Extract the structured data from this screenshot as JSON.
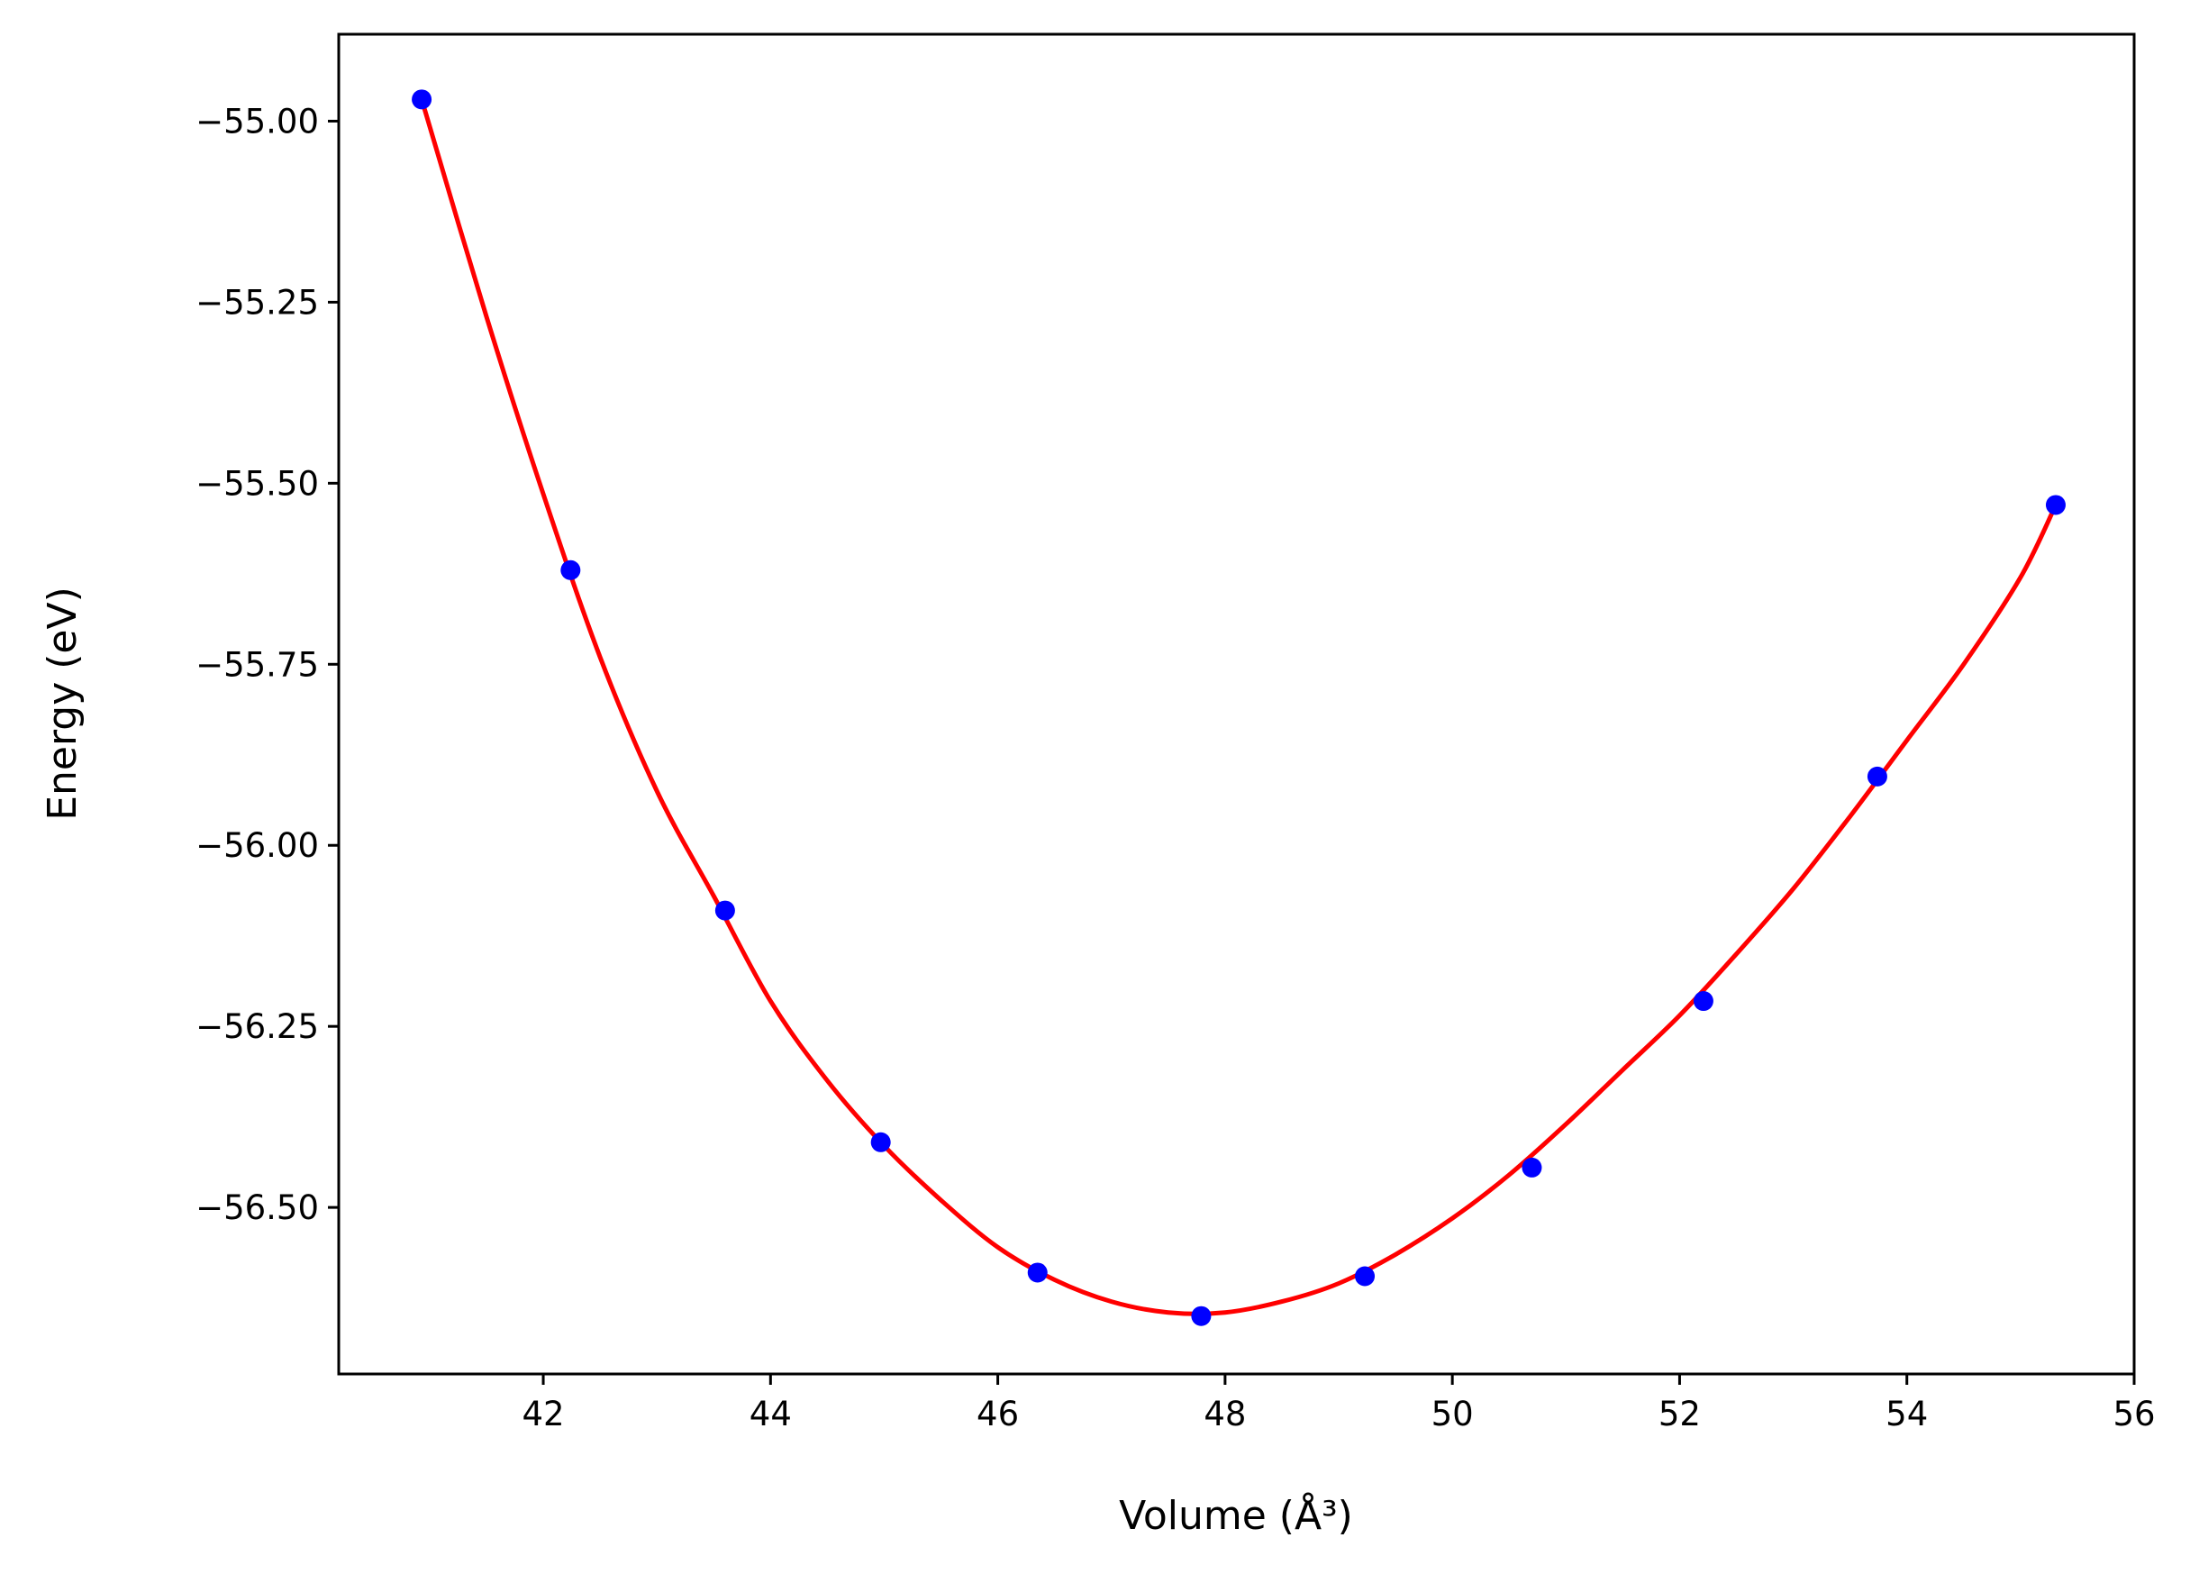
{
  "chart_data": {
    "type": "scatter",
    "title": "",
    "xlabel": "Volume (Å³)",
    "ylabel": "Energy (eV)",
    "xlim": [
      40.2,
      56.0
    ],
    "ylim": [
      -56.73,
      -54.88
    ],
    "x_ticks": [
      42,
      44,
      46,
      48,
      50,
      52,
      54,
      56
    ],
    "y_ticks": [
      -55.0,
      -55.25,
      -55.5,
      -55.75,
      -56.0,
      -56.25,
      -56.5
    ],
    "x_tick_labels": [
      "42",
      "44",
      "46",
      "48",
      "50",
      "52",
      "54",
      "56"
    ],
    "y_tick_labels": [
      "−55.00",
      "−55.25",
      "−55.50",
      "−55.75",
      "−56.00",
      "−56.25",
      "−56.50"
    ],
    "grid": false,
    "legend": "none",
    "series": [
      {
        "kind": "points",
        "color": "#0000ff",
        "x": [
          40.93,
          42.24,
          43.6,
          44.97,
          46.35,
          47.79,
          49.23,
          50.7,
          52.21,
          53.74,
          55.31
        ],
        "y": [
          -54.97,
          -55.62,
          -56.09,
          -56.41,
          -56.59,
          -56.65,
          -56.595,
          -56.445,
          -56.215,
          -55.905,
          -55.53
        ]
      },
      {
        "kind": "fit-curve",
        "color": "#ff0000",
        "x": [
          40.93,
          41.5,
          42.0,
          42.5,
          43.0,
          43.5,
          44.0,
          44.5,
          45.0,
          45.5,
          46.0,
          46.5,
          47.0,
          47.5,
          48.0,
          48.5,
          49.0,
          49.5,
          50.0,
          50.5,
          51.0,
          51.5,
          52.0,
          52.5,
          53.0,
          53.5,
          54.0,
          54.5,
          55.0,
          55.31
        ],
        "y": [
          -54.97,
          -55.27,
          -55.515,
          -55.74,
          -55.925,
          -56.07,
          -56.215,
          -56.325,
          -56.415,
          -56.49,
          -56.555,
          -56.6,
          -56.63,
          -56.645,
          -56.645,
          -56.63,
          -56.605,
          -56.565,
          -56.515,
          -56.455,
          -56.385,
          -56.31,
          -56.235,
          -56.15,
          -56.06,
          -55.96,
          -55.855,
          -55.75,
          -55.63,
          -55.53
        ]
      }
    ]
  }
}
